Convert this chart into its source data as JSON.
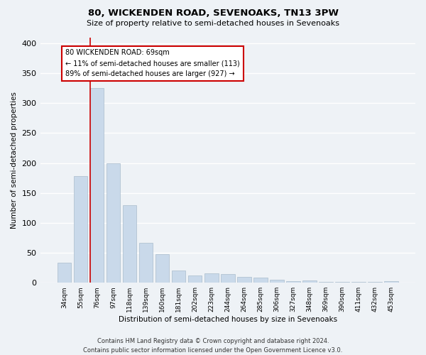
{
  "title1": "80, WICKENDEN ROAD, SEVENOAKS, TN13 3PW",
  "title2": "Size of property relative to semi-detached houses in Sevenoaks",
  "xlabel": "Distribution of semi-detached houses by size in Sevenoaks",
  "ylabel": "Number of semi-detached properties",
  "categories": [
    "34sqm",
    "55sqm",
    "76sqm",
    "97sqm",
    "118sqm",
    "139sqm",
    "160sqm",
    "181sqm",
    "202sqm",
    "223sqm",
    "244sqm",
    "264sqm",
    "285sqm",
    "306sqm",
    "327sqm",
    "348sqm",
    "369sqm",
    "390sqm",
    "411sqm",
    "432sqm",
    "453sqm"
  ],
  "values": [
    33,
    178,
    325,
    200,
    130,
    67,
    48,
    20,
    12,
    16,
    15,
    10,
    9,
    5,
    3,
    4,
    1,
    1,
    1,
    1,
    3
  ],
  "bar_color": "#c9d9ea",
  "bar_edge_color": "#aabccc",
  "vline_color": "#cc0000",
  "annotation_text": "80 WICKENDEN ROAD: 69sqm\n← 11% of semi-detached houses are smaller (113)\n89% of semi-detached houses are larger (927) →",
  "annotation_box_color": "#ffffff",
  "annotation_box_edge": "#cc0000",
  "ylim": [
    0,
    410
  ],
  "yticks": [
    0,
    50,
    100,
    150,
    200,
    250,
    300,
    350,
    400
  ],
  "footer": "Contains HM Land Registry data © Crown copyright and database right 2024.\nContains public sector information licensed under the Open Government Licence v3.0.",
  "bg_color": "#eef2f6",
  "grid_color": "#ffffff"
}
